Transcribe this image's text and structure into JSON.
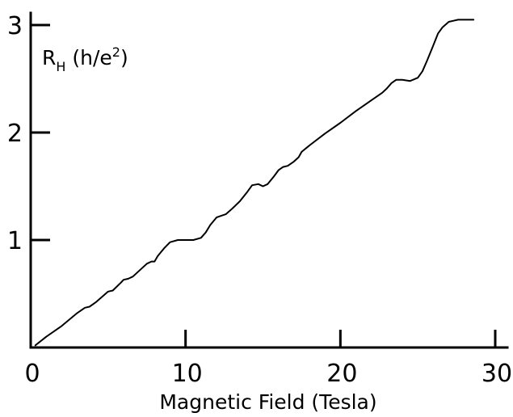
{
  "chart_data": {
    "type": "line",
    "title": "",
    "xlabel": "Magnetic Field (Tesla)",
    "ylabel": {
      "main": "R",
      "subscript": "H",
      "unit_open": " (h/e",
      "superscript": "2",
      "unit_close": ")"
    },
    "xlim": [
      0,
      30
    ],
    "ylim": [
      0,
      3
    ],
    "grid": false,
    "line_color": "#000000",
    "x_ticks": [
      {
        "value": 0,
        "label": "0"
      },
      {
        "value": 10,
        "label": "10"
      },
      {
        "value": 20,
        "label": "20"
      },
      {
        "value": 30,
        "label": "30"
      }
    ],
    "y_ticks": [
      {
        "value": 1,
        "label": "1"
      },
      {
        "value": 2,
        "label": "2"
      },
      {
        "value": 3,
        "label": "3"
      }
    ],
    "series": [
      {
        "x": [
          0.3,
          1.0,
          2.0,
          3.0,
          3.5,
          3.8,
          4.2,
          5.0,
          5.3,
          5.8,
          6.0,
          6.3,
          6.6,
          7.5,
          7.8,
          8.0,
          8.2,
          8.6,
          9.0,
          9.5,
          10.0,
          10.5,
          11.0,
          11.3,
          11.6,
          12.0,
          12.2,
          12.6,
          13.0,
          13.5,
          14.0,
          14.3,
          14.7,
          15.0,
          15.3,
          15.7,
          16.0,
          16.3,
          16.6,
          17.0,
          17.3,
          17.5,
          18.0,
          19.0,
          20.0,
          21.0,
          22.0,
          22.5,
          22.7,
          23.0,
          23.3,
          23.6,
          24.0,
          24.5,
          25.0,
          25.3,
          25.6,
          26.0,
          26.3,
          26.6,
          27.0,
          27.3,
          27.6,
          28.0,
          28.3,
          28.6
        ],
        "y": [
          0.02,
          0.1,
          0.2,
          0.32,
          0.37,
          0.38,
          0.42,
          0.52,
          0.53,
          0.6,
          0.63,
          0.64,
          0.66,
          0.78,
          0.8,
          0.8,
          0.85,
          0.92,
          0.98,
          1.0,
          1.0,
          1.0,
          1.02,
          1.07,
          1.14,
          1.21,
          1.22,
          1.24,
          1.29,
          1.36,
          1.45,
          1.51,
          1.52,
          1.5,
          1.52,
          1.59,
          1.65,
          1.68,
          1.69,
          1.73,
          1.77,
          1.82,
          1.88,
          1.99,
          2.09,
          2.2,
          2.3,
          2.35,
          2.37,
          2.41,
          2.46,
          2.49,
          2.49,
          2.48,
          2.51,
          2.57,
          2.67,
          2.81,
          2.92,
          2.98,
          3.03,
          3.04,
          3.05,
          3.05,
          3.05,
          3.05
        ]
      }
    ]
  }
}
